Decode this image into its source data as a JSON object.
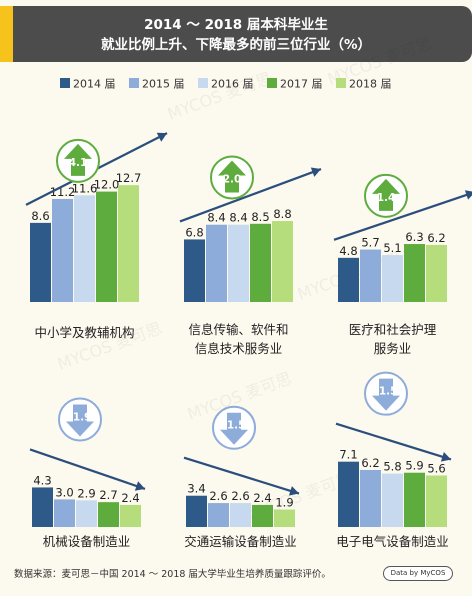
{
  "title": {
    "line1": "2014 ～ 2018 届本科毕业生",
    "line2": "就业比例上升、下降最多的前三位行业（%）"
  },
  "legend": [
    "2014 届",
    "2015 届",
    "2016 届",
    "2017 届",
    "2018 届"
  ],
  "colors": {
    "series": [
      "#2e5a8a",
      "#8eacd9",
      "#c7d9ee",
      "#5eac3e",
      "#b5dd7c"
    ],
    "up_arrow": "#5eac3e",
    "down_arrow": "#8eacd9",
    "trend_line": "#2b4f7d",
    "title_bg": "#4c4c4c",
    "title_accent": "#f6c21c"
  },
  "watermark": "MYCOS 麦可思",
  "chart_data": [
    {
      "type": "bar",
      "category": "中小学及教辅机构",
      "series": [
        "2014 届",
        "2015 届",
        "2016 届",
        "2017 届",
        "2018 届"
      ],
      "values": [
        8.6,
        11.2,
        11.6,
        12.0,
        12.7
      ],
      "value_labels": [
        "8.6",
        "11.2",
        "11.6",
        "12.0",
        "12.7"
      ],
      "change_label": "4.1",
      "direction": "up"
    },
    {
      "type": "bar",
      "category": "信息传输、软件和信息技术服务业",
      "category_lines": [
        "信息传输、软件和",
        "信息技术服务业"
      ],
      "series": [
        "2014 届",
        "2015 届",
        "2016 届",
        "2017 届",
        "2018 届"
      ],
      "values": [
        6.8,
        8.4,
        8.4,
        8.5,
        8.8
      ],
      "value_labels": [
        "6.8",
        "8.4",
        "8.4",
        "8.5",
        "8.8"
      ],
      "change_label": "2.0",
      "direction": "up"
    },
    {
      "type": "bar",
      "category": "医疗和社会护理服务业",
      "category_lines": [
        "医疗和社会护理",
        "服务业"
      ],
      "series": [
        "2014 届",
        "2015 届",
        "2016 届",
        "2017 届",
        "2018 届"
      ],
      "values": [
        4.8,
        5.7,
        5.1,
        6.3,
        6.2
      ],
      "value_labels": [
        "4.8",
        "5.7",
        "5.1",
        "6.3",
        "6.2"
      ],
      "change_label": "1.4",
      "direction": "up"
    },
    {
      "type": "bar",
      "category": "机械设备制造业",
      "series": [
        "2014 届",
        "2015 届",
        "2016 届",
        "2017 届",
        "2018 届"
      ],
      "values": [
        4.3,
        3.0,
        2.9,
        2.7,
        2.4
      ],
      "value_labels": [
        "4.3",
        "3.0",
        "2.9",
        "2.7",
        "2.4"
      ],
      "change_label": "-1.9",
      "direction": "down"
    },
    {
      "type": "bar",
      "category": "交通运输设备制造业",
      "series": [
        "2014 届",
        "2015 届",
        "2016 届",
        "2017 届",
        "2018 届"
      ],
      "values": [
        3.4,
        2.6,
        2.6,
        2.4,
        1.9
      ],
      "value_labels": [
        "3.4",
        "2.6",
        "2.6",
        "2.4",
        "1.9"
      ],
      "change_label": "-1.5",
      "direction": "down"
    },
    {
      "type": "bar",
      "category": "电子电气设备制造业",
      "series": [
        "2014 届",
        "2015 届",
        "2016 届",
        "2017 届",
        "2018 届"
      ],
      "values": [
        7.1,
        6.2,
        5.8,
        5.9,
        5.6
      ],
      "value_labels": [
        "7.1",
        "6.2",
        "5.8",
        "5.9",
        "5.6"
      ],
      "change_label": "-1.5",
      "direction": "down"
    }
  ],
  "footer": {
    "source": "数据来源：麦可思－中国 2014 ～ 2018 届大学毕业生培养质量跟踪评价。",
    "badge": "Data by MyCOS"
  }
}
